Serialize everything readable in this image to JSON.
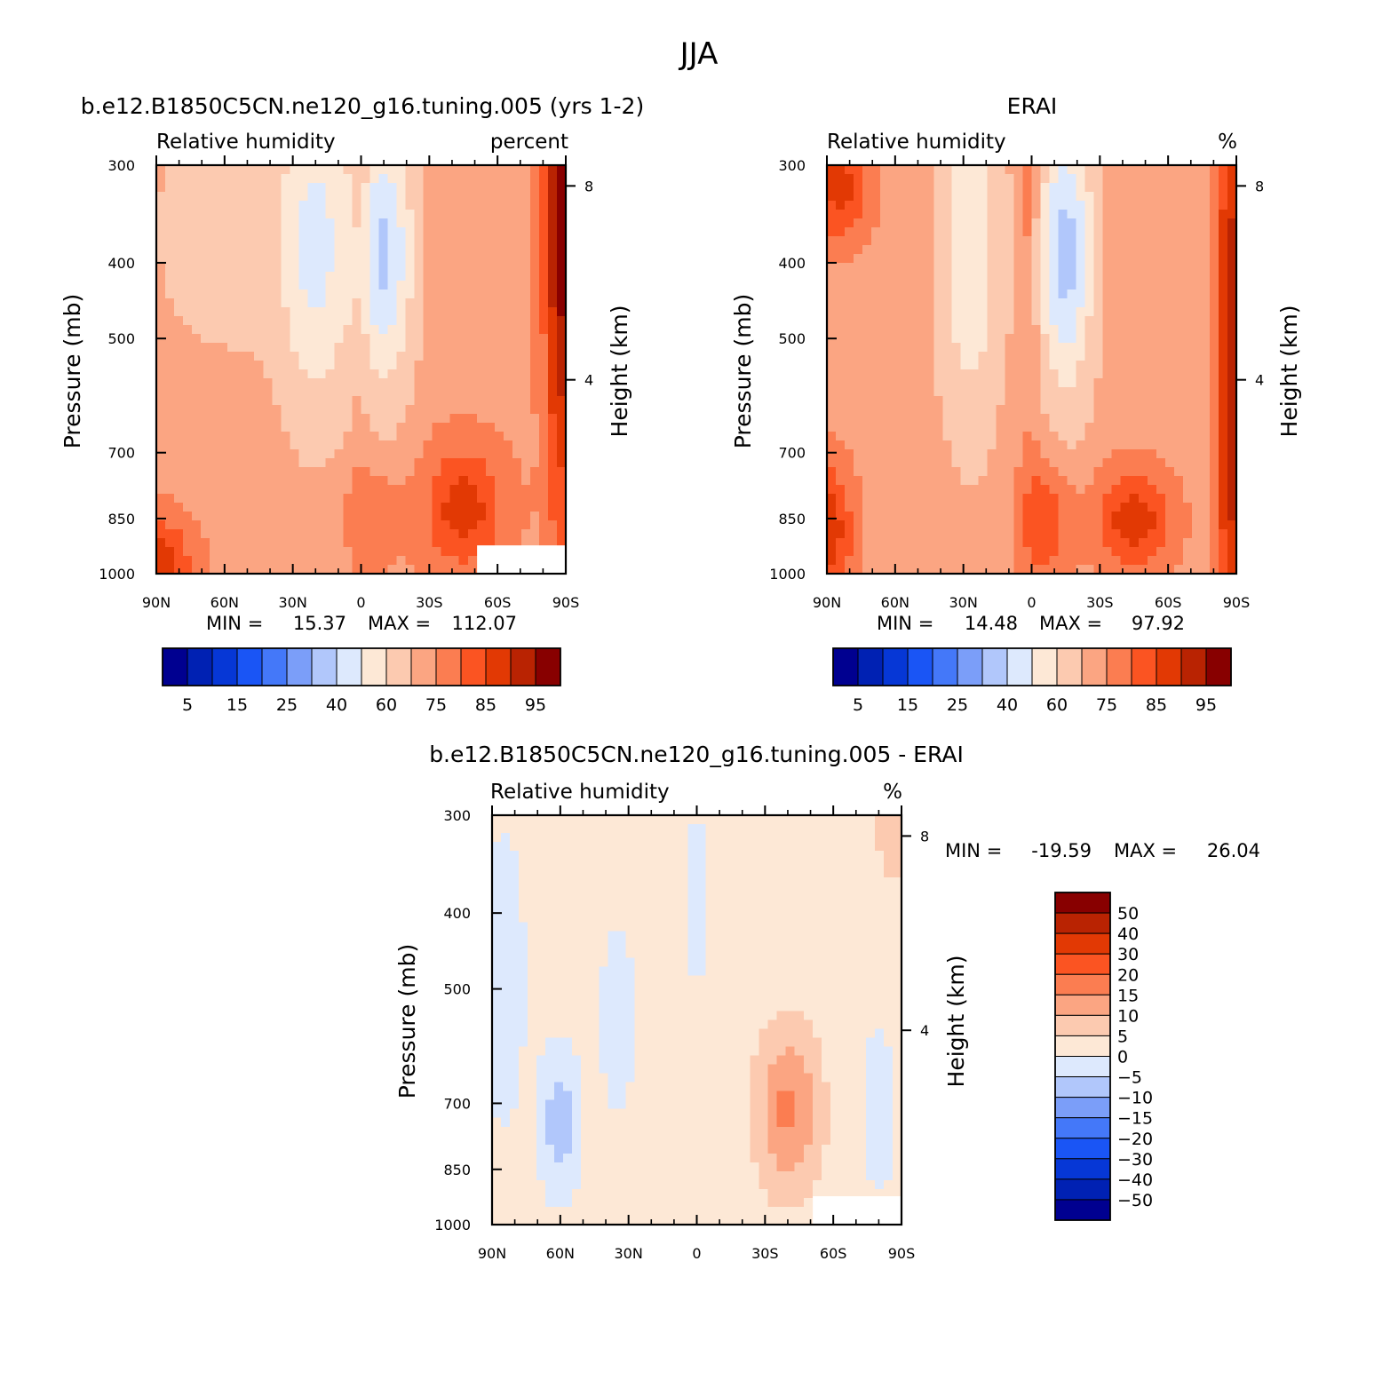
{
  "figure": {
    "title": "JJA"
  },
  "chart_data": [
    {
      "type": "heatmap",
      "panel": "model",
      "title": "b.e12.B1850C5CN.ne120_g16.tuning.005 (yrs 1-2)",
      "variable": "Relative humidity",
      "units": "percent",
      "ylabel": "Pressure (mb)",
      "ylabel_right": "Height (km)",
      "x_ticks": [
        "90N",
        "60N",
        "30N",
        "0",
        "30S",
        "60S",
        "90S"
      ],
      "y_ticks": [
        "300",
        "400",
        "500",
        "700",
        "850",
        "1000"
      ],
      "y_right_ticks": [
        "8",
        "4"
      ],
      "stats": {
        "min_label": "MIN =",
        "min": "15.37",
        "max_label": "MAX =",
        "max": "112.07"
      },
      "colorbar": {
        "orientation": "horizontal",
        "labels": [
          "5",
          "15",
          "25",
          "40",
          "60",
          "75",
          "85",
          "95"
        ]
      },
      "missing_region": {
        "lat": [
          -51,
          -90
        ],
        "p": [
          920,
          1000
        ]
      }
    },
    {
      "type": "heatmap",
      "panel": "obs",
      "title": "ERAI",
      "variable": "Relative humidity",
      "units": "%",
      "ylabel": "Pressure (mb)",
      "ylabel_right": "Height (km)",
      "x_ticks": [
        "90N",
        "60N",
        "30N",
        "0",
        "30S",
        "60S",
        "90S"
      ],
      "y_ticks": [
        "300",
        "400",
        "500",
        "700",
        "850",
        "1000"
      ],
      "y_right_ticks": [
        "8",
        "4"
      ],
      "stats": {
        "min_label": "MIN =",
        "min": "14.48",
        "max_label": "MAX =",
        "max": "97.92"
      },
      "colorbar": {
        "orientation": "horizontal",
        "labels": [
          "5",
          "15",
          "25",
          "40",
          "60",
          "75",
          "85",
          "95"
        ]
      }
    },
    {
      "type": "heatmap",
      "panel": "diff",
      "title": "b.e12.B1850C5CN.ne120_g16.tuning.005 - ERAI",
      "variable": "Relative humidity",
      "units": "%",
      "ylabel": "Pressure (mb)",
      "ylabel_right": "Height (km)",
      "x_ticks": [
        "90N",
        "60N",
        "30N",
        "0",
        "30S",
        "60S",
        "90S"
      ],
      "y_ticks": [
        "300",
        "400",
        "500",
        "700",
        "850",
        "1000"
      ],
      "y_right_ticks": [
        "8",
        "4"
      ],
      "stats": {
        "min_label": "MIN =",
        "min": "-19.59",
        "max_label": "MAX =",
        "max": "26.04"
      },
      "colorbar": {
        "orientation": "vertical",
        "labels": [
          "50",
          "40",
          "30",
          "20",
          "15",
          "10",
          "5",
          "0",
          "-5",
          "-10",
          "-15",
          "-20",
          "-30",
          "-40",
          "-50"
        ]
      },
      "missing_region": {
        "lat": [
          -51,
          -90
        ],
        "p": [
          920,
          1000
        ]
      }
    }
  ],
  "colors": {
    "abs_scale": [
      "#000090",
      "#0021b3",
      "#0637d6",
      "#1a55f5",
      "#4478f9",
      "#7b9ef9",
      "#b1c7fb",
      "#dde9fd",
      "#fde8d6",
      "#fccab0",
      "#fba582",
      "#fb7d51",
      "#fb5422",
      "#e23904",
      "#b92302",
      "#880000"
    ],
    "diff_scale": [
      "#000090",
      "#0021b3",
      "#0637d6",
      "#1a55f5",
      "#4478f9",
      "#7b9ef9",
      "#b1c7fb",
      "#dde9fd",
      "#fde8d6",
      "#fccab0",
      "#fba582",
      "#fb7d51",
      "#fb5422",
      "#e23904",
      "#b92302",
      "#880000"
    ]
  }
}
